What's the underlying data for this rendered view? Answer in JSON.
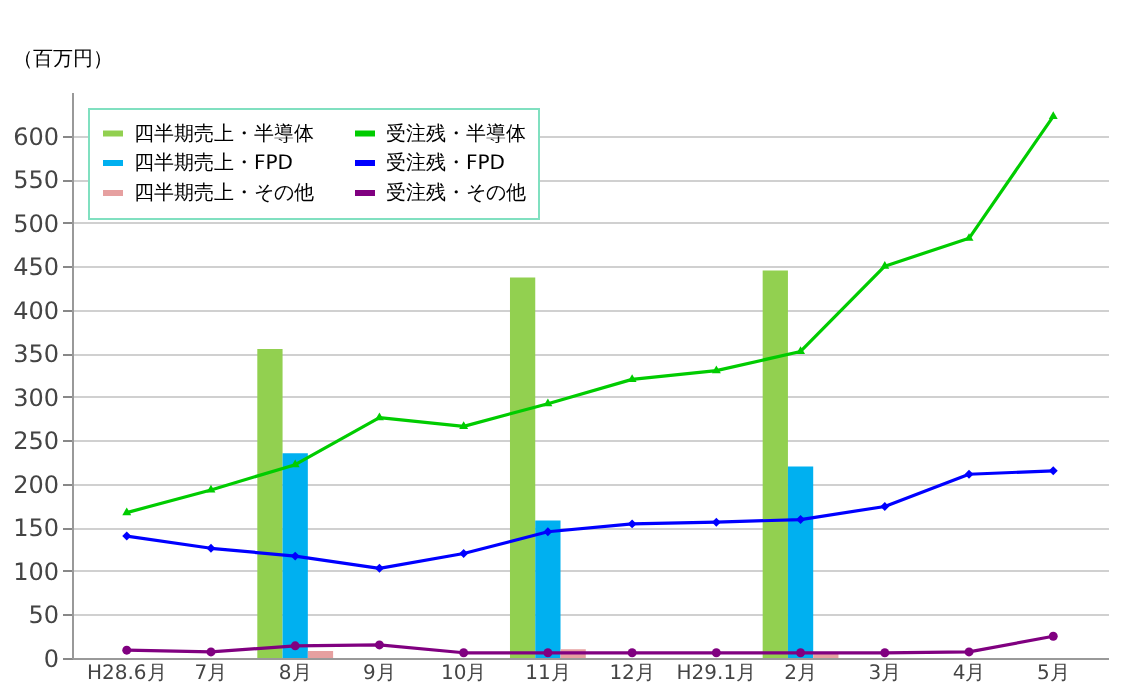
{
  "chart_data": {
    "type": "bar",
    "ylabel": "（百万円）",
    "categories": [
      "H28.6月",
      "7月",
      "8月",
      "9月",
      "10月",
      "11月",
      "12月",
      "H29.1月",
      "2月",
      "3月",
      "4月",
      "5月"
    ],
    "series": [
      {
        "name": "四半期売上・半導体",
        "color": "#92d050",
        "values": [
          null,
          null,
          355,
          null,
          null,
          437,
          null,
          null,
          445,
          null,
          null,
          null
        ]
      },
      {
        "name": "四半期売上・FPD",
        "color": "#00b0f0",
        "values": [
          null,
          null,
          235,
          null,
          null,
          158,
          null,
          null,
          220,
          null,
          null,
          null
        ]
      },
      {
        "name": "四半期売上・その他",
        "color": "#e6a0a0",
        "values": [
          null,
          null,
          8,
          null,
          null,
          10,
          null,
          null,
          5,
          null,
          null,
          null
        ]
      },
      {
        "name": "受注残・半導体",
        "type": "line",
        "marker": "triangle",
        "color": "#00cc00",
        "values": [
          167,
          193,
          222,
          276,
          266,
          292,
          320,
          330,
          352,
          450,
          482,
          622
        ]
      },
      {
        "name": "受注残・FPD",
        "type": "line",
        "marker": "diamond",
        "color": "#0000ff",
        "values": [
          140,
          126,
          117,
          103,
          120,
          145,
          154,
          156,
          159,
          174,
          211,
          215
        ]
      },
      {
        "name": "受注残・その他",
        "type": "line",
        "marker": "circle",
        "color": "#800080",
        "values": [
          9,
          7,
          14,
          15,
          6,
          6,
          6,
          6,
          6,
          6,
          7,
          25
        ]
      }
    ],
    "ylim": [
      0,
      650
    ],
    "yticks": [
      0,
      50,
      100,
      150,
      200,
      250,
      300,
      350,
      400,
      450,
      500,
      550,
      600
    ],
    "grid": "y",
    "legend": "top left"
  }
}
